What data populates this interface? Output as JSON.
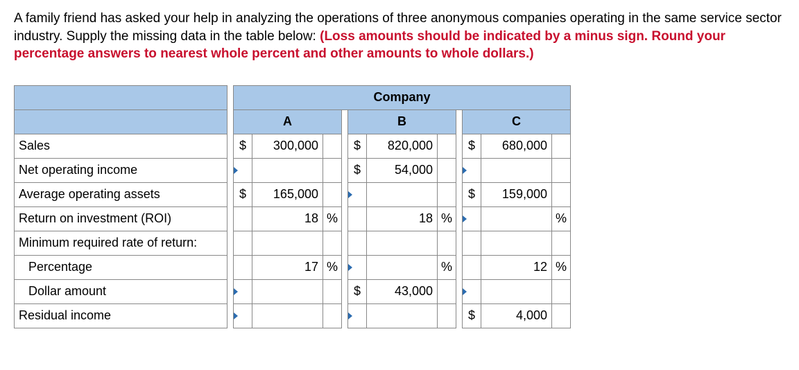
{
  "question": {
    "text_part1": "A family friend has asked your help in analyzing the operations of three anonymous companies operating in the same service sector industry. Supply the missing data in the table below: ",
    "text_bold": "(Loss amounts should be indicated by a minus sign. Round your percentage answers to nearest whole percent and other amounts to whole dollars.)"
  },
  "table": {
    "header_super": "Company",
    "cols": [
      "A",
      "B",
      "C"
    ],
    "rows": [
      {
        "label": "Sales",
        "indent": false,
        "cells": [
          {
            "cur": "$",
            "val": "300,000",
            "unit": "",
            "ind": false
          },
          {
            "cur": "$",
            "val": "820,000",
            "unit": "",
            "ind": false
          },
          {
            "cur": "$",
            "val": "680,000",
            "unit": "",
            "ind": false
          }
        ]
      },
      {
        "label": "Net operating income",
        "indent": false,
        "cells": [
          {
            "cur": "",
            "val": "",
            "unit": "",
            "ind": true
          },
          {
            "cur": "$",
            "val": "54,000",
            "unit": "",
            "ind": false
          },
          {
            "cur": "",
            "val": "",
            "unit": "",
            "ind": true
          }
        ]
      },
      {
        "label": "Average operating assets",
        "indent": false,
        "cells": [
          {
            "cur": "$",
            "val": "165,000",
            "unit": "",
            "ind": false
          },
          {
            "cur": "",
            "val": "",
            "unit": "",
            "ind": true
          },
          {
            "cur": "$",
            "val": "159,000",
            "unit": "",
            "ind": false
          }
        ]
      },
      {
        "label": "Return on investment (ROI)",
        "indent": false,
        "cells": [
          {
            "cur": "",
            "val": "18",
            "unit": "%",
            "ind": false
          },
          {
            "cur": "",
            "val": "18",
            "unit": "%",
            "ind": false
          },
          {
            "cur": "",
            "val": "",
            "unit": "%",
            "ind": true
          }
        ]
      },
      {
        "label": "Minimum required rate of return:",
        "indent": false,
        "cells": [
          {
            "cur": "",
            "val": "",
            "unit": "",
            "ind": false,
            "blank": true
          },
          {
            "cur": "",
            "val": "",
            "unit": "",
            "ind": false,
            "blank": true
          },
          {
            "cur": "",
            "val": "",
            "unit": "",
            "ind": false,
            "blank": true
          }
        ]
      },
      {
        "label": "Percentage",
        "indent": true,
        "cells": [
          {
            "cur": "",
            "val": "17",
            "unit": "%",
            "ind": false
          },
          {
            "cur": "",
            "val": "",
            "unit": "%",
            "ind": true
          },
          {
            "cur": "",
            "val": "12",
            "unit": "%",
            "ind": false
          }
        ]
      },
      {
        "label": "Dollar amount",
        "indent": true,
        "cells": [
          {
            "cur": "",
            "val": "",
            "unit": "",
            "ind": true
          },
          {
            "cur": "$",
            "val": "43,000",
            "unit": "",
            "ind": false
          },
          {
            "cur": "",
            "val": "",
            "unit": "",
            "ind": true
          }
        ]
      },
      {
        "label": "Residual income",
        "indent": false,
        "cells": [
          {
            "cur": "",
            "val": "",
            "unit": "",
            "ind": true
          },
          {
            "cur": "",
            "val": "",
            "unit": "",
            "ind": true
          },
          {
            "cur": "$",
            "val": "4,000",
            "unit": "",
            "ind": false
          }
        ]
      }
    ]
  }
}
